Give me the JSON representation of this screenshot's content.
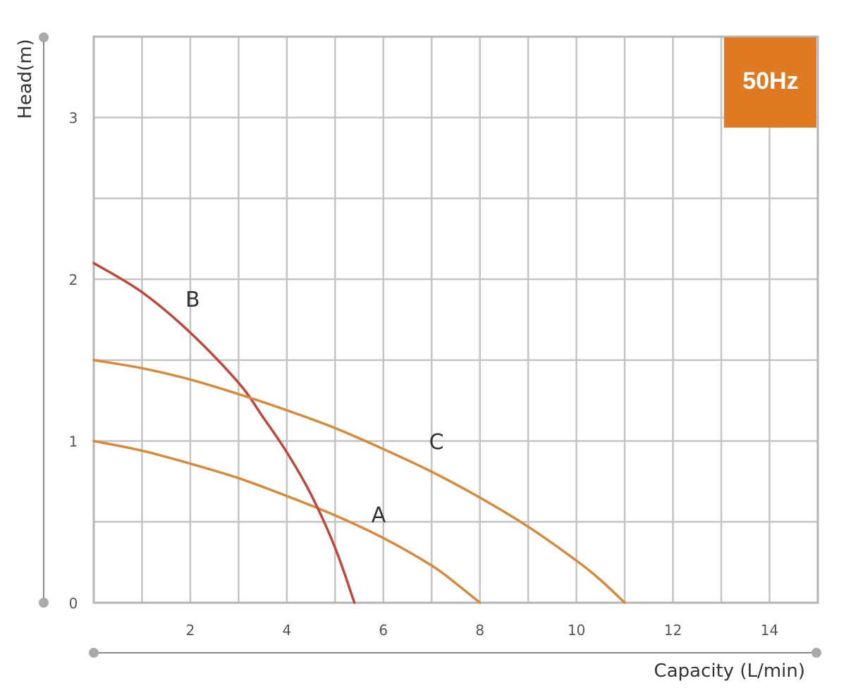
{
  "chart_data": {
    "type": "line",
    "xlabel": "Capacity (L/min)",
    "ylabel": "Head(m)",
    "xlim": [
      0,
      15
    ],
    "ylim": [
      0,
      3.5
    ],
    "x_ticks": [
      {
        "value": 2,
        "label": "2"
      },
      {
        "value": 4,
        "label": "4"
      },
      {
        "value": 6,
        "label": "6"
      },
      {
        "value": 8,
        "label": "8"
      },
      {
        "value": 10,
        "label": "10"
      },
      {
        "value": 12,
        "label": "12"
      },
      {
        "value": 14,
        "label": "14"
      }
    ],
    "y_ticks": [
      {
        "value": 0,
        "label": "0"
      },
      {
        "value": 1,
        "label": "1"
      },
      {
        "value": 2,
        "label": "2"
      },
      {
        "value": 3,
        "label": "3"
      }
    ],
    "x_grid_step": 1,
    "y_grid_step": 0.5,
    "grid": true,
    "badge": {
      "text": "50Hz",
      "color": "#E07A22",
      "position": "top-right"
    },
    "series": [
      {
        "name": "A",
        "color": "#D9893A",
        "x": [
          0,
          1,
          2,
          3,
          4,
          5,
          6,
          7,
          7.5,
          8
        ],
        "y": [
          1.0,
          0.94,
          0.86,
          0.77,
          0.66,
          0.54,
          0.4,
          0.23,
          0.12,
          0.0
        ],
        "label_at": [
          5.9,
          0.5
        ]
      },
      {
        "name": "B",
        "color": "#C0463A",
        "x": [
          0,
          1,
          2,
          3,
          3.5,
          4,
          4.5,
          5,
          5.4
        ],
        "y": [
          2.1,
          1.92,
          1.67,
          1.36,
          1.15,
          0.93,
          0.67,
          0.34,
          0.0
        ],
        "label_at": [
          2.05,
          1.83
        ]
      },
      {
        "name": "C",
        "color": "#D9893A",
        "x": [
          0,
          1,
          2,
          3,
          4,
          5,
          6,
          7,
          8,
          9,
          10,
          10.5,
          11
        ],
        "y": [
          1.5,
          1.45,
          1.38,
          1.29,
          1.19,
          1.08,
          0.95,
          0.81,
          0.65,
          0.47,
          0.26,
          0.14,
          0.0
        ],
        "label_at": [
          7.1,
          0.95
        ]
      }
    ]
  }
}
